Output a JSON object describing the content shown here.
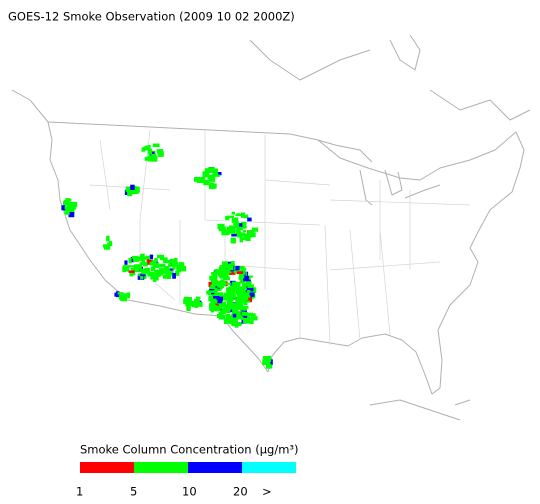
{
  "title": "GOES-12 Smoke Observation (2009 10 02  2000Z)",
  "legend": {
    "title": "Smoke Column Concentration (µg/m³)",
    "colors": [
      "#ff0000",
      "#00ff00",
      "#0000ff",
      "#00ffff"
    ],
    "ticks": [
      "1",
      "5",
      "10",
      "20",
      ">"
    ]
  }
}
